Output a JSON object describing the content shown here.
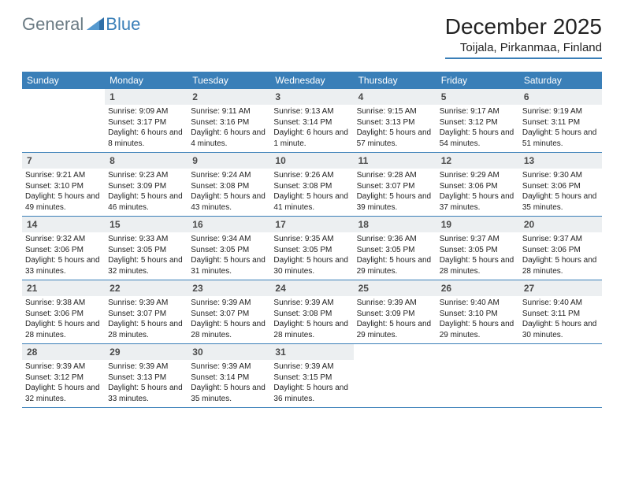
{
  "logo": {
    "text1": "General",
    "text2": "Blue"
  },
  "title": "December 2025",
  "location": "Toijala, Pirkanmaa, Finland",
  "colors": {
    "accent": "#3a7fb8",
    "dayHeaderBg": "#eceff1",
    "logoGray": "#6b7b84",
    "border": "#3a7fb8"
  },
  "daysOfWeek": [
    "Sunday",
    "Monday",
    "Tuesday",
    "Wednesday",
    "Thursday",
    "Friday",
    "Saturday"
  ],
  "weeks": [
    [
      null,
      {
        "n": "1",
        "sr": "Sunrise: 9:09 AM",
        "ss": "Sunset: 3:17 PM",
        "dl": "Daylight: 6 hours and 8 minutes."
      },
      {
        "n": "2",
        "sr": "Sunrise: 9:11 AM",
        "ss": "Sunset: 3:16 PM",
        "dl": "Daylight: 6 hours and 4 minutes."
      },
      {
        "n": "3",
        "sr": "Sunrise: 9:13 AM",
        "ss": "Sunset: 3:14 PM",
        "dl": "Daylight: 6 hours and 1 minute."
      },
      {
        "n": "4",
        "sr": "Sunrise: 9:15 AM",
        "ss": "Sunset: 3:13 PM",
        "dl": "Daylight: 5 hours and 57 minutes."
      },
      {
        "n": "5",
        "sr": "Sunrise: 9:17 AM",
        "ss": "Sunset: 3:12 PM",
        "dl": "Daylight: 5 hours and 54 minutes."
      },
      {
        "n": "6",
        "sr": "Sunrise: 9:19 AM",
        "ss": "Sunset: 3:11 PM",
        "dl": "Daylight: 5 hours and 51 minutes."
      }
    ],
    [
      {
        "n": "7",
        "sr": "Sunrise: 9:21 AM",
        "ss": "Sunset: 3:10 PM",
        "dl": "Daylight: 5 hours and 49 minutes."
      },
      {
        "n": "8",
        "sr": "Sunrise: 9:23 AM",
        "ss": "Sunset: 3:09 PM",
        "dl": "Daylight: 5 hours and 46 minutes."
      },
      {
        "n": "9",
        "sr": "Sunrise: 9:24 AM",
        "ss": "Sunset: 3:08 PM",
        "dl": "Daylight: 5 hours and 43 minutes."
      },
      {
        "n": "10",
        "sr": "Sunrise: 9:26 AM",
        "ss": "Sunset: 3:08 PM",
        "dl": "Daylight: 5 hours and 41 minutes."
      },
      {
        "n": "11",
        "sr": "Sunrise: 9:28 AM",
        "ss": "Sunset: 3:07 PM",
        "dl": "Daylight: 5 hours and 39 minutes."
      },
      {
        "n": "12",
        "sr": "Sunrise: 9:29 AM",
        "ss": "Sunset: 3:06 PM",
        "dl": "Daylight: 5 hours and 37 minutes."
      },
      {
        "n": "13",
        "sr": "Sunrise: 9:30 AM",
        "ss": "Sunset: 3:06 PM",
        "dl": "Daylight: 5 hours and 35 minutes."
      }
    ],
    [
      {
        "n": "14",
        "sr": "Sunrise: 9:32 AM",
        "ss": "Sunset: 3:06 PM",
        "dl": "Daylight: 5 hours and 33 minutes."
      },
      {
        "n": "15",
        "sr": "Sunrise: 9:33 AM",
        "ss": "Sunset: 3:05 PM",
        "dl": "Daylight: 5 hours and 32 minutes."
      },
      {
        "n": "16",
        "sr": "Sunrise: 9:34 AM",
        "ss": "Sunset: 3:05 PM",
        "dl": "Daylight: 5 hours and 31 minutes."
      },
      {
        "n": "17",
        "sr": "Sunrise: 9:35 AM",
        "ss": "Sunset: 3:05 PM",
        "dl": "Daylight: 5 hours and 30 minutes."
      },
      {
        "n": "18",
        "sr": "Sunrise: 9:36 AM",
        "ss": "Sunset: 3:05 PM",
        "dl": "Daylight: 5 hours and 29 minutes."
      },
      {
        "n": "19",
        "sr": "Sunrise: 9:37 AM",
        "ss": "Sunset: 3:05 PM",
        "dl": "Daylight: 5 hours and 28 minutes."
      },
      {
        "n": "20",
        "sr": "Sunrise: 9:37 AM",
        "ss": "Sunset: 3:06 PM",
        "dl": "Daylight: 5 hours and 28 minutes."
      }
    ],
    [
      {
        "n": "21",
        "sr": "Sunrise: 9:38 AM",
        "ss": "Sunset: 3:06 PM",
        "dl": "Daylight: 5 hours and 28 minutes."
      },
      {
        "n": "22",
        "sr": "Sunrise: 9:39 AM",
        "ss": "Sunset: 3:07 PM",
        "dl": "Daylight: 5 hours and 28 minutes."
      },
      {
        "n": "23",
        "sr": "Sunrise: 9:39 AM",
        "ss": "Sunset: 3:07 PM",
        "dl": "Daylight: 5 hours and 28 minutes."
      },
      {
        "n": "24",
        "sr": "Sunrise: 9:39 AM",
        "ss": "Sunset: 3:08 PM",
        "dl": "Daylight: 5 hours and 28 minutes."
      },
      {
        "n": "25",
        "sr": "Sunrise: 9:39 AM",
        "ss": "Sunset: 3:09 PM",
        "dl": "Daylight: 5 hours and 29 minutes."
      },
      {
        "n": "26",
        "sr": "Sunrise: 9:40 AM",
        "ss": "Sunset: 3:10 PM",
        "dl": "Daylight: 5 hours and 29 minutes."
      },
      {
        "n": "27",
        "sr": "Sunrise: 9:40 AM",
        "ss": "Sunset: 3:11 PM",
        "dl": "Daylight: 5 hours and 30 minutes."
      }
    ],
    [
      {
        "n": "28",
        "sr": "Sunrise: 9:39 AM",
        "ss": "Sunset: 3:12 PM",
        "dl": "Daylight: 5 hours and 32 minutes."
      },
      {
        "n": "29",
        "sr": "Sunrise: 9:39 AM",
        "ss": "Sunset: 3:13 PM",
        "dl": "Daylight: 5 hours and 33 minutes."
      },
      {
        "n": "30",
        "sr": "Sunrise: 9:39 AM",
        "ss": "Sunset: 3:14 PM",
        "dl": "Daylight: 5 hours and 35 minutes."
      },
      {
        "n": "31",
        "sr": "Sunrise: 9:39 AM",
        "ss": "Sunset: 3:15 PM",
        "dl": "Daylight: 5 hours and 36 minutes."
      },
      null,
      null,
      null
    ]
  ]
}
